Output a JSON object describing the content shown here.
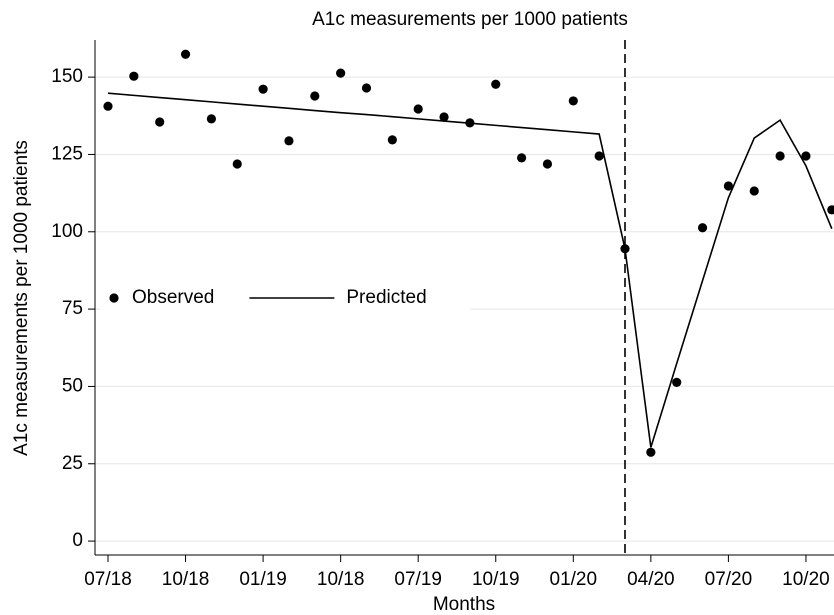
{
  "chart_data": {
    "type": "line",
    "title": "A1c measurements per 1000 patients",
    "x_label": "Months",
    "y_label": "A1c measurements per 1000 patients",
    "categories": [
      "07/18",
      null,
      null,
      "10/18",
      null,
      null,
      "01/19",
      null,
      null,
      "10/18",
      null,
      null,
      "07/19",
      null,
      null,
      "10/19",
      null,
      null,
      "01/20",
      null,
      null,
      "04/20",
      null,
      null,
      "07/20",
      null,
      null,
      "10/20",
      null
    ],
    "series": [
      {
        "name": "Observed",
        "style": "markers",
        "color": "#000000",
        "values": [
          140.6,
          150.3,
          135.5,
          157.4,
          136.5,
          121.9,
          146.1,
          129.4,
          143.9,
          151.3,
          146.5,
          129.7,
          139.7,
          137.1,
          135.2,
          147.7,
          123.9,
          121.9,
          142.3,
          124.5,
          94.5,
          28.7,
          51.3,
          101.3,
          114.8,
          113.2,
          124.5,
          124.5,
          107.1
        ]
      },
      {
        "name": "Predicted",
        "style": "line",
        "color": "#000000",
        "values": [
          144.8,
          144.1,
          143.4,
          142.7,
          142.0,
          141.3,
          140.6,
          139.9,
          139.2,
          138.5,
          137.9,
          137.2,
          136.5,
          135.8,
          135.1,
          134.4,
          133.7,
          133.0,
          132.3,
          131.6,
          94.5,
          30.3,
          57.4,
          84.2,
          111.0,
          130.3,
          136.1,
          121.3,
          101.0
        ]
      }
    ],
    "vline_index": 20,
    "ylim": [
      -4.5,
      162
    ],
    "yticks": [
      0,
      25,
      50,
      75,
      100,
      125,
      150
    ],
    "grid": true,
    "legend": "left"
  }
}
